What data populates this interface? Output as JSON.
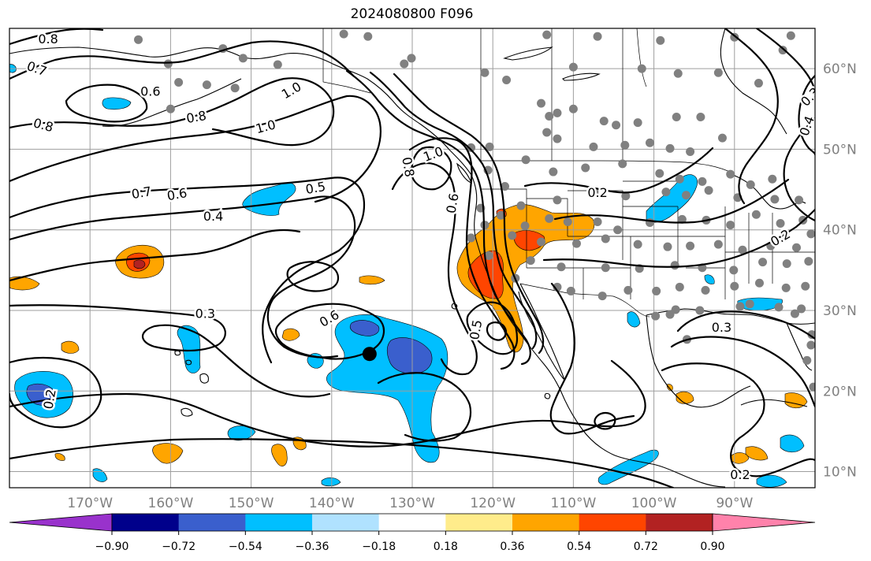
{
  "title": "2024080800 F096",
  "colors": {
    "station": "#808080",
    "grid": "#9e9e9e",
    "contour": "#000000",
    "center_marker": "#000000"
  },
  "chart_data": {
    "type": "map",
    "lon_range": [
      -180,
      -80
    ],
    "lat_range": [
      8,
      65
    ],
    "lat_ticks": [
      10,
      20,
      30,
      40,
      50,
      60
    ],
    "lat_tick_labels": [
      "10°N",
      "20°N",
      "30°N",
      "40°N",
      "50°N",
      "60°N"
    ],
    "lon_ticks": [
      -170,
      -160,
      -150,
      -140,
      -130,
      -120,
      -110,
      -100,
      -90
    ],
    "lon_tick_labels": [
      "170°W",
      "160°W",
      "150°W",
      "140°W",
      "130°W",
      "120°W",
      "110°W",
      "100°W",
      "90°W"
    ],
    "grid": true,
    "colorbar": {
      "orientation": "horizontal",
      "extend": "both",
      "tick_values": [
        -0.9,
        -0.72,
        -0.54,
        -0.36,
        -0.18,
        0.18,
        0.36,
        0.54,
        0.72,
        0.9
      ],
      "tick_labels": [
        "−0.90",
        "−0.72",
        "−0.54",
        "−0.36",
        "−0.18",
        "0.18",
        "0.36",
        "0.54",
        "0.72",
        "0.90"
      ],
      "bin_edges": [
        -1.08,
        -0.9,
        -0.72,
        -0.54,
        -0.36,
        -0.18,
        0.18,
        0.36,
        0.54,
        0.72,
        0.9,
        1.08
      ],
      "colors": [
        "#9932cc",
        "#00008b",
        "#3a5fcd",
        "#00bfff",
        "#b0e2ff",
        "#ffffff",
        "#ffec8b",
        "#ffa500",
        "#ff4500",
        "#b22222",
        "#ff82ab"
      ]
    },
    "contour_labels": [
      {
        "text": "0.8",
        "lon": -175.2,
        "lat": 63.7,
        "angle": 0
      },
      {
        "text": "0.7",
        "lon": -176.6,
        "lat": 60.0,
        "angle": 20
      },
      {
        "text": "0.6",
        "lon": -162.5,
        "lat": 57.2,
        "angle": 0
      },
      {
        "text": "0.8",
        "lon": -175.8,
        "lat": 53.0,
        "angle": 15
      },
      {
        "text": "0.8",
        "lon": -156.8,
        "lat": 54.0,
        "angle": -10
      },
      {
        "text": "1.0",
        "lon": -145.0,
        "lat": 57.3,
        "angle": -30
      },
      {
        "text": "1.0",
        "lon": -148.2,
        "lat": 52.8,
        "angle": -15
      },
      {
        "text": "0.7",
        "lon": -163.6,
        "lat": 44.6,
        "angle": -10
      },
      {
        "text": "0.6",
        "lon": -159.2,
        "lat": 44.4,
        "angle": -10
      },
      {
        "text": "0.5",
        "lon": -142.0,
        "lat": 45.2,
        "angle": -10
      },
      {
        "text": "0.4",
        "lon": -154.7,
        "lat": 41.7,
        "angle": 0
      },
      {
        "text": "1.0",
        "lon": -127.4,
        "lat": 49.4,
        "angle": -20
      },
      {
        "text": "0.8",
        "lon": -130.5,
        "lat": 47.8,
        "angle": 80
      },
      {
        "text": "0.6",
        "lon": -125.0,
        "lat": 43.3,
        "angle": -80
      },
      {
        "text": "0.3",
        "lon": -155.7,
        "lat": 29.6,
        "angle": 0
      },
      {
        "text": "0.6",
        "lon": -140.3,
        "lat": 29.0,
        "angle": -30
      },
      {
        "text": "0.5",
        "lon": -122.1,
        "lat": 27.6,
        "angle": -80
      },
      {
        "text": "0.2",
        "lon": -107.0,
        "lat": 44.6,
        "angle": 0
      },
      {
        "text": "0.2",
        "lon": -84.3,
        "lat": 39.0,
        "angle": -30
      },
      {
        "text": "0.3",
        "lon": -80.6,
        "lat": 56.5,
        "angle": -45
      },
      {
        "text": "0.4",
        "lon": -81.0,
        "lat": 52.9,
        "angle": -70
      },
      {
        "text": "0.3",
        "lon": -91.6,
        "lat": 27.9,
        "angle": 0
      },
      {
        "text": "0.2",
        "lon": -89.3,
        "lat": 9.6,
        "angle": 0
      },
      {
        "text": "0.2",
        "lon": -175.0,
        "lat": 19.0,
        "angle": -80
      }
    ],
    "markers": [
      {
        "type": "storm-center",
        "lon": -135.3,
        "lat": 24.6
      }
    ],
    "stations": [
      [
        -164,
        63.6
      ],
      [
        -138.5,
        64.3
      ],
      [
        -135.5,
        64.0
      ],
      [
        -153.5,
        62.5
      ],
      [
        -160.3,
        60.6
      ],
      [
        -151.0,
        61.3
      ],
      [
        -146.7,
        60.5
      ],
      [
        -159.0,
        58.3
      ],
      [
        -155.5,
        58.0
      ],
      [
        -152.0,
        57.6
      ],
      [
        -160.0,
        55.0
      ],
      [
        -131.0,
        60.6
      ],
      [
        -130.1,
        61.3
      ],
      [
        -121.0,
        59.5
      ],
      [
        -113.3,
        64.2
      ],
      [
        -107.0,
        64.0
      ],
      [
        -99.2,
        63.5
      ],
      [
        -90.0,
        63.9
      ],
      [
        -84.0,
        62.3
      ],
      [
        -83.0,
        64.1
      ],
      [
        -92.0,
        59.5
      ],
      [
        -110.0,
        60.2
      ],
      [
        -101.5,
        60.0
      ],
      [
        -97.0,
        59.4
      ],
      [
        -87.0,
        58.2
      ],
      [
        -118.3,
        58.6
      ],
      [
        -114.0,
        55.7
      ],
      [
        -113.0,
        54.1
      ],
      [
        -112.0,
        54.5
      ],
      [
        -110.0,
        55.0
      ],
      [
        -106.2,
        53.5
      ],
      [
        -104.7,
        53.0
      ],
      [
        -102.0,
        53.3
      ],
      [
        -97.2,
        54.0
      ],
      [
        -94.2,
        54.0
      ],
      [
        -113.3,
        52.1
      ],
      [
        -112.0,
        51.3
      ],
      [
        -107.5,
        50.3
      ],
      [
        -103.6,
        50.5
      ],
      [
        -100.5,
        50.8
      ],
      [
        -98.0,
        50.1
      ],
      [
        -95.5,
        49.7
      ],
      [
        -91.5,
        51.4
      ],
      [
        -122.7,
        50.2
      ],
      [
        -120.4,
        50.3
      ],
      [
        -115.9,
        48.7
      ],
      [
        -112.5,
        47.2
      ],
      [
        -108.5,
        47.7
      ],
      [
        -103.9,
        48.2
      ],
      [
        -99.3,
        47.0
      ],
      [
        -96.8,
        46.3
      ],
      [
        -94.0,
        46.0
      ],
      [
        -90.5,
        46.9
      ],
      [
        -88.0,
        45.6
      ],
      [
        -85.3,
        46.3
      ],
      [
        -120.6,
        47.4
      ],
      [
        -118.5,
        45.4
      ],
      [
        -116.5,
        43.0
      ],
      [
        -112.0,
        43.7
      ],
      [
        -107.4,
        44.6
      ],
      [
        -103.5,
        44.2
      ],
      [
        -98.5,
        44.7
      ],
      [
        -96.0,
        44.3
      ],
      [
        -93.2,
        44.9
      ],
      [
        -89.6,
        44.0
      ],
      [
        -85.0,
        43.8
      ],
      [
        -82.0,
        43.7
      ],
      [
        -121.5,
        42.7
      ],
      [
        -119.0,
        41.8
      ],
      [
        -116.0,
        40.5
      ],
      [
        -113.0,
        41.4
      ],
      [
        -110.7,
        41.0
      ],
      [
        -107.0,
        41.0
      ],
      [
        -104.5,
        40.0
      ],
      [
        -100.5,
        40.9
      ],
      [
        -96.5,
        41.3
      ],
      [
        -93.5,
        41.2
      ],
      [
        -90.5,
        40.6
      ],
      [
        -87.3,
        41.9
      ],
      [
        -84.3,
        40.8
      ],
      [
        -81.5,
        41.2
      ],
      [
        -80.5,
        39.5
      ],
      [
        -122.7,
        39.0
      ],
      [
        -121.0,
        40.6
      ],
      [
        -117.6,
        39.3
      ],
      [
        -114.0,
        38.5
      ],
      [
        -109.6,
        38.3
      ],
      [
        -106.0,
        38.9
      ],
      [
        -102.0,
        38.2
      ],
      [
        -98.3,
        37.9
      ],
      [
        -95.5,
        38.0
      ],
      [
        -92.0,
        38.2
      ],
      [
        -89.0,
        37.5
      ],
      [
        -85.5,
        38.0
      ],
      [
        -82.3,
        37.8
      ],
      [
        -120.5,
        36.8
      ],
      [
        -115.3,
        36.2
      ],
      [
        -111.5,
        35.4
      ],
      [
        -106.0,
        35.3
      ],
      [
        -101.8,
        35.2
      ],
      [
        -97.4,
        35.6
      ],
      [
        -94.0,
        35.3
      ],
      [
        -90.1,
        35.0
      ],
      [
        -86.5,
        36.0
      ],
      [
        -83.5,
        35.8
      ],
      [
        -80.8,
        36.1
      ],
      [
        -117.2,
        34.0
      ],
      [
        -110.3,
        32.4
      ],
      [
        -106.4,
        31.8
      ],
      [
        -103.2,
        32.5
      ],
      [
        -99.7,
        32.4
      ],
      [
        -96.8,
        32.9
      ],
      [
        -93.6,
        32.5
      ],
      [
        -90.0,
        33.0
      ],
      [
        -86.9,
        33.4
      ],
      [
        -83.6,
        32.8
      ],
      [
        -81.2,
        33.0
      ],
      [
        -112.0,
        32.9
      ],
      [
        -94.3,
        30.0
      ],
      [
        -89.3,
        30.5
      ],
      [
        -84.5,
        30.4
      ],
      [
        -81.7,
        30.2
      ],
      [
        -88.1,
        30.8
      ],
      [
        -97.3,
        30.1
      ],
      [
        -99.8,
        29.3
      ],
      [
        -82.5,
        29.6
      ],
      [
        -80.4,
        27.0
      ],
      [
        -95.9,
        26.4
      ],
      [
        -98.0,
        29.5
      ],
      [
        -80.5,
        25.7
      ],
      [
        -81.0,
        23.8
      ],
      [
        -80.2,
        20.5
      ]
    ]
  }
}
